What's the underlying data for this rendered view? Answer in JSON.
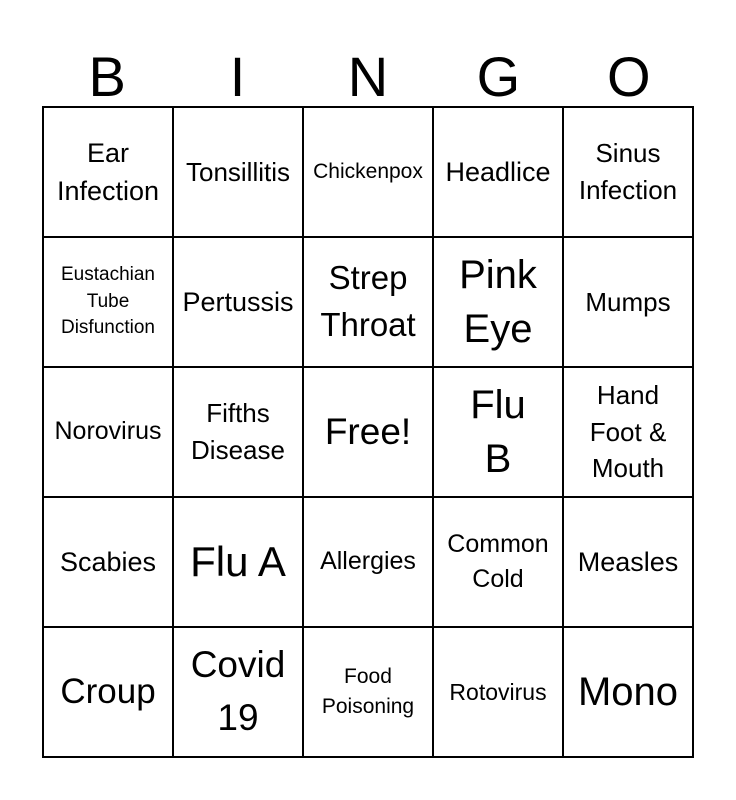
{
  "header": {
    "letters": [
      "B",
      "I",
      "N",
      "G",
      "O"
    ]
  },
  "grid": {
    "rows": 5,
    "cols": 5,
    "free_space_text": "Free!",
    "cells": [
      {
        "text": "Ear\nInfection"
      },
      {
        "text": "Tonsillitis"
      },
      {
        "text": "Chickenpox"
      },
      {
        "text": "Headlice"
      },
      {
        "text": "Sinus\nInfection"
      },
      {
        "text": "Eustachian\nTube\nDisfunction"
      },
      {
        "text": "Pertussis"
      },
      {
        "text": "Strep\nThroat"
      },
      {
        "text": "Pink\nEye"
      },
      {
        "text": "Mumps"
      },
      {
        "text": "Norovirus"
      },
      {
        "text": "Fifths\nDisease"
      },
      {
        "text": "Free!"
      },
      {
        "text": "Flu\nB"
      },
      {
        "text": "Hand\nFoot &\nMouth"
      },
      {
        "text": "Scabies"
      },
      {
        "text": "Flu A"
      },
      {
        "text": "Allergies"
      },
      {
        "text": "Common\nCold"
      },
      {
        "text": "Measles"
      },
      {
        "text": "Croup"
      },
      {
        "text": "Covid\n19"
      },
      {
        "text": "Food\nPoisoning"
      },
      {
        "text": "Rotovirus"
      },
      {
        "text": "Mono"
      }
    ]
  },
  "colors": {
    "background": "#ffffff",
    "grid_line": "#000000",
    "text": "#000000"
  }
}
